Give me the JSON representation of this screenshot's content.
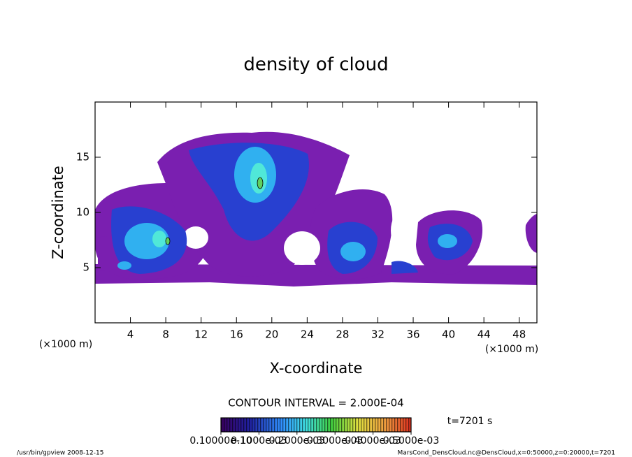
{
  "chart_data": {
    "type": "contour",
    "title": "density of cloud",
    "x_label": "X-coordinate",
    "y_label": "Z-coordinate",
    "x_unit_left": "(×1000 m)",
    "x_unit_right": "(×1000 m)",
    "xlim": [
      0,
      50
    ],
    "xticks": [
      4,
      8,
      12,
      16,
      20,
      24,
      28,
      32,
      36,
      40,
      44,
      48
    ],
    "ylim": [
      0,
      20
    ],
    "yticks": [
      5,
      10,
      15
    ],
    "contour_interval": "CONTOUR INTERVAL = 2.000E-04",
    "time_label": "t=7201 s",
    "colorbar": {
      "clim": [
        0,
        0.0005
      ],
      "ticks": [
        {
          "value": 0,
          "label": "0.10000e-10"
        },
        {
          "value": 0.0001,
          "label": "0.1000e-03"
        },
        {
          "value": 0.0002,
          "label": "0.2000e-03"
        },
        {
          "value": 0.0003,
          "label": "0.3000e-03"
        },
        {
          "value": 0.0004,
          "label": "0.4000e-03"
        },
        {
          "value": 0.0005,
          "label": "0.5000e-03"
        }
      ]
    },
    "footer_left": "/usr/bin/gpview   2008-12-15",
    "footer_right": "MarsCond_DensCloud.nc@DensCloud,x=0:50000,z=0:20000,t=7201"
  }
}
